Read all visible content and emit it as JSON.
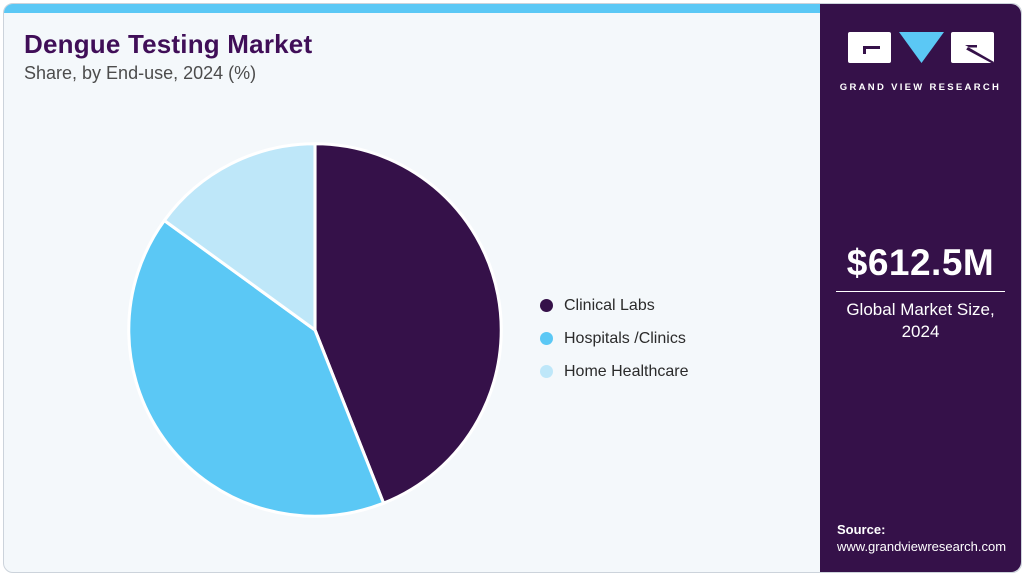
{
  "header": {
    "title": "Dengue Testing Market",
    "subtitle": "Share, by End-use, 2024 (%)"
  },
  "chart_data": {
    "type": "pie",
    "title": "Dengue Testing Market Share, by End-use, 2024 (%)",
    "categories": [
      "Clinical Labs",
      "Hospitals /Clinics",
      "Home Healthcare"
    ],
    "values": [
      44,
      41,
      15
    ],
    "unit": "%",
    "colors": [
      "#351149",
      "#5bc8f5",
      "#bee7f9"
    ],
    "start_angle_deg": -90,
    "direction": "clockwise",
    "legend_position": "right",
    "slice_gap_color": "#ffffff"
  },
  "legend": {
    "items": [
      {
        "label": "Clinical Labs",
        "color": "#351149"
      },
      {
        "label": "Hospitals /Clinics",
        "color": "#5bc8f5"
      },
      {
        "label": "Home Healthcare",
        "color": "#bee7f9"
      }
    ]
  },
  "sidebar": {
    "brand_name": "GRAND VIEW RESEARCH",
    "logo_icon": "gvr-logo",
    "market_size_value": "$612.5M",
    "market_size_label": "Global Market Size, 2024",
    "source_label": "Source:",
    "source_url": "www.grandviewresearch.com"
  },
  "colors": {
    "accent_blue": "#5bc8f5",
    "brand_purple": "#351149",
    "card_background": "#f4f8fb",
    "title_purple": "#400e58"
  }
}
